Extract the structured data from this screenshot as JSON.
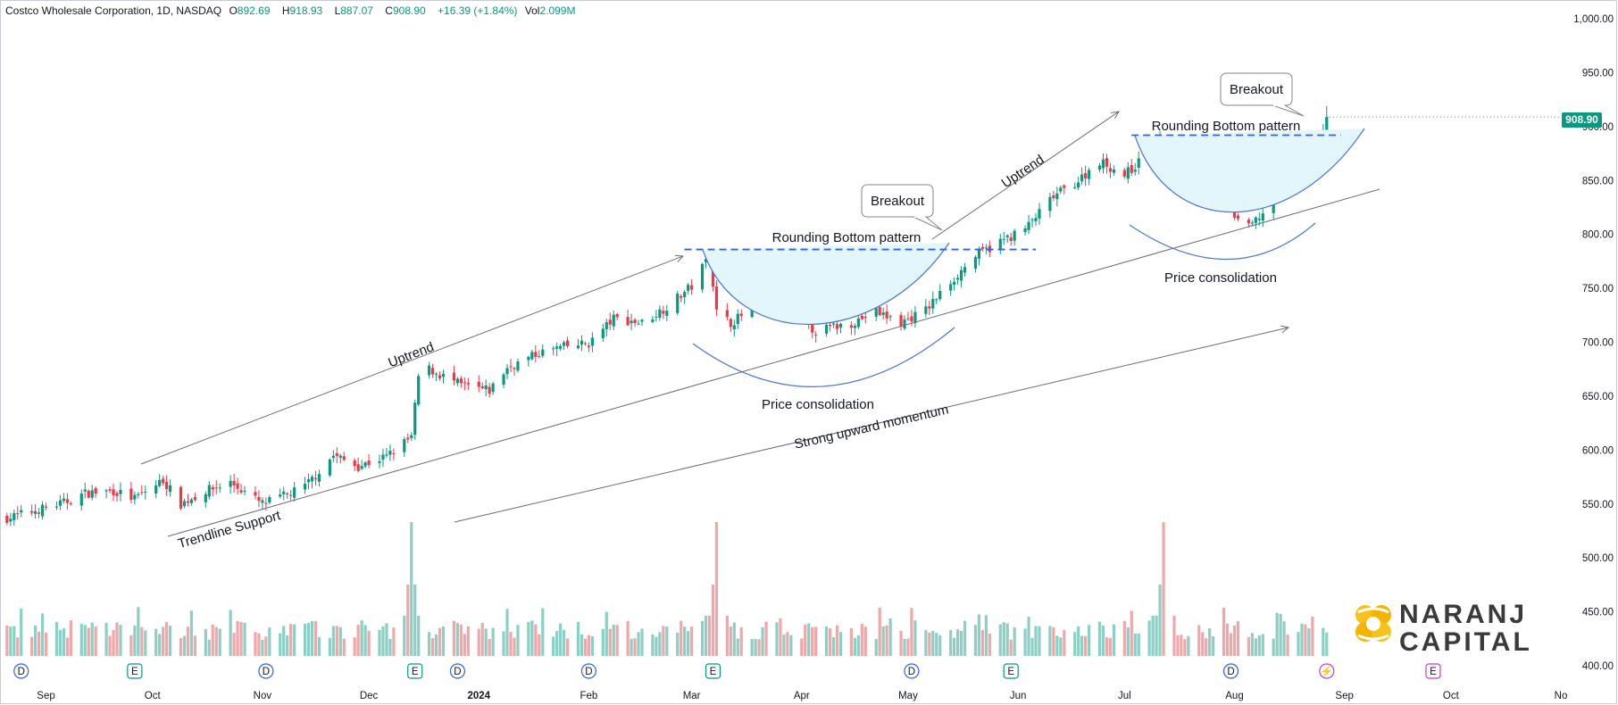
{
  "legend": {
    "symbol": "Costco Wholesale Corporation, 1D, NASDAQ",
    "o_label": "O",
    "o": "892.69",
    "h_label": "H",
    "h": "918.93",
    "l_label": "L",
    "l": "887.07",
    "c_label": "C",
    "c": "908.90",
    "change": "+16.39 (+1.84%)",
    "vol_label": "Vol",
    "vol": "2.099M"
  },
  "last_price_tag": "908.90",
  "colors": {
    "up": "#089981",
    "down": "#f23645",
    "up_vol": "#8ccfc4",
    "down_vol": "#f1a7a9",
    "pattern_fill": "#e3f6fb",
    "blue": "#2962ff"
  },
  "annotations": {
    "uptrend_1": "Uptrend",
    "uptrend_2": "Uptrend",
    "trendline_support": "Trendline Support",
    "strong_momentum": "Strong upward momentum",
    "rounding_bottom_1": "Rounding Bottom pattern",
    "rounding_bottom_2": "Rounding Bottom pattern",
    "price_consolidation_1": "Price consolidation",
    "price_consolidation_2": "Price consolidation",
    "breakout_1": "Breakout",
    "breakout_2": "Breakout"
  },
  "event_markers": [
    {
      "date": "2023-08-25",
      "letter": "D"
    },
    {
      "date": "2023-09-26",
      "letter": "E"
    },
    {
      "date": "2023-11-02",
      "letter": "D"
    },
    {
      "date": "2023-12-14",
      "letter": "E"
    },
    {
      "date": "2023-12-26",
      "letter": "D"
    },
    {
      "date": "2024-02-01",
      "letter": "D"
    },
    {
      "date": "2024-03-07",
      "letter": "E"
    },
    {
      "date": "2024-05-02",
      "letter": "D"
    },
    {
      "date": "2024-05-30",
      "letter": "E"
    },
    {
      "date": "2024-07-31",
      "letter": "D"
    },
    {
      "date": "2024-08-27",
      "letter": "⚡"
    },
    {
      "date": "2024-09-26",
      "letter": "E"
    }
  ],
  "logo_text": [
    "NARANJ",
    "CAPITAL"
  ],
  "chart_data": {
    "type": "candlestick",
    "title": "Costco Wholesale Corporation, 1D, NASDAQ",
    "y_ticks": [
      "1,000.00",
      "950.00",
      "900.00",
      "850.00",
      "800.00",
      "750.00",
      "700.00",
      "650.00",
      "600.00",
      "550.00",
      "500.00",
      "450.00",
      "400.00"
    ],
    "ylim": [
      400,
      1000
    ],
    "x_ticks": [
      {
        "label": "Sep",
        "date": "2023-09-01",
        "bold": false
      },
      {
        "label": "Oct",
        "date": "2023-10-01",
        "bold": false
      },
      {
        "label": "Nov",
        "date": "2023-11-01",
        "bold": false
      },
      {
        "label": "Dec",
        "date": "2023-12-01",
        "bold": false
      },
      {
        "label": "2024",
        "date": "2024-01-01",
        "bold": true
      },
      {
        "label": "Feb",
        "date": "2024-02-01",
        "bold": false
      },
      {
        "label": "Mar",
        "date": "2024-03-01",
        "bold": false
      },
      {
        "label": "Apr",
        "date": "2024-04-01",
        "bold": false
      },
      {
        "label": "May",
        "date": "2024-05-01",
        "bold": false
      },
      {
        "label": "Jun",
        "date": "2024-06-01",
        "bold": false
      },
      {
        "label": "Jul",
        "date": "2024-07-01",
        "bold": false
      },
      {
        "label": "Aug",
        "date": "2024-08-01",
        "bold": false
      },
      {
        "label": "Sep",
        "date": "2024-09-01",
        "bold": false
      },
      {
        "label": "Oct",
        "date": "2024-10-01",
        "bold": false
      },
      {
        "label": "No",
        "date": "2024-11-01",
        "bold": false
      }
    ],
    "price_path": [
      [
        "2023-08-21",
        537
      ],
      [
        "2023-08-28",
        543
      ],
      [
        "2023-09-06",
        551
      ],
      [
        "2023-09-12",
        560
      ],
      [
        "2023-09-20",
        562
      ],
      [
        "2023-09-26",
        555
      ],
      [
        "2023-10-04",
        572
      ],
      [
        "2023-10-09",
        550
      ],
      [
        "2023-10-16",
        562
      ],
      [
        "2023-10-23",
        570
      ],
      [
        "2023-11-01",
        550
      ],
      [
        "2023-11-06",
        556
      ],
      [
        "2023-11-13",
        566
      ],
      [
        "2023-11-21",
        595
      ],
      [
        "2023-11-28",
        585
      ],
      [
        "2023-12-06",
        594
      ],
      [
        "2023-12-13",
        612
      ],
      [
        "2023-12-15",
        668
      ],
      [
        "2023-12-18",
        675
      ],
      [
        "2023-12-27",
        660
      ],
      [
        "2024-01-04",
        655
      ],
      [
        "2024-01-09",
        676
      ],
      [
        "2024-01-18",
        690
      ],
      [
        "2024-01-24",
        695
      ],
      [
        "2024-02-01",
        699
      ],
      [
        "2024-02-08",
        722
      ],
      [
        "2024-02-16",
        718
      ],
      [
        "2024-02-23",
        733
      ],
      [
        "2024-03-01",
        752
      ],
      [
        "2024-03-06",
        781
      ],
      [
        "2024-03-08",
        728
      ],
      [
        "2024-03-12",
        718
      ],
      [
        "2024-03-18",
        731
      ],
      [
        "2024-03-27",
        732
      ],
      [
        "2024-04-05",
        710
      ],
      [
        "2024-04-15",
        718
      ],
      [
        "2024-04-22",
        728
      ],
      [
        "2024-04-29",
        718
      ],
      [
        "2024-05-06",
        730
      ],
      [
        "2024-05-13",
        756
      ],
      [
        "2024-05-20",
        780
      ],
      [
        "2024-05-28",
        795
      ],
      [
        "2024-06-03",
        805
      ],
      [
        "2024-06-11",
        835
      ],
      [
        "2024-06-18",
        850
      ],
      [
        "2024-06-24",
        868
      ],
      [
        "2024-07-01",
        855
      ],
      [
        "2024-07-09",
        878
      ],
      [
        "2024-07-11",
        888
      ],
      [
        "2024-07-16",
        852
      ],
      [
        "2024-07-22",
        838
      ],
      [
        "2024-07-29",
        826
      ],
      [
        "2024-08-05",
        806
      ],
      [
        "2024-08-09",
        820
      ],
      [
        "2024-08-14",
        858
      ],
      [
        "2024-08-20",
        877
      ],
      [
        "2024-08-26",
        893
      ],
      [
        "2024-08-27",
        909
      ]
    ],
    "last_bar": {
      "o": 892.69,
      "h": 918.93,
      "l": 887.07,
      "c": 908.9
    },
    "resistance_levels": [
      {
        "price": 786,
        "from": "2024-03-04",
        "to": "2024-06-06"
      },
      {
        "price": 892,
        "from": "2024-07-08",
        "to": "2024-08-31"
      }
    ],
    "volume_peaks": [
      [
        "2023-12-13",
        "E"
      ],
      [
        "2024-03-08",
        "E"
      ],
      [
        "2024-07-12",
        "D"
      ]
    ]
  }
}
